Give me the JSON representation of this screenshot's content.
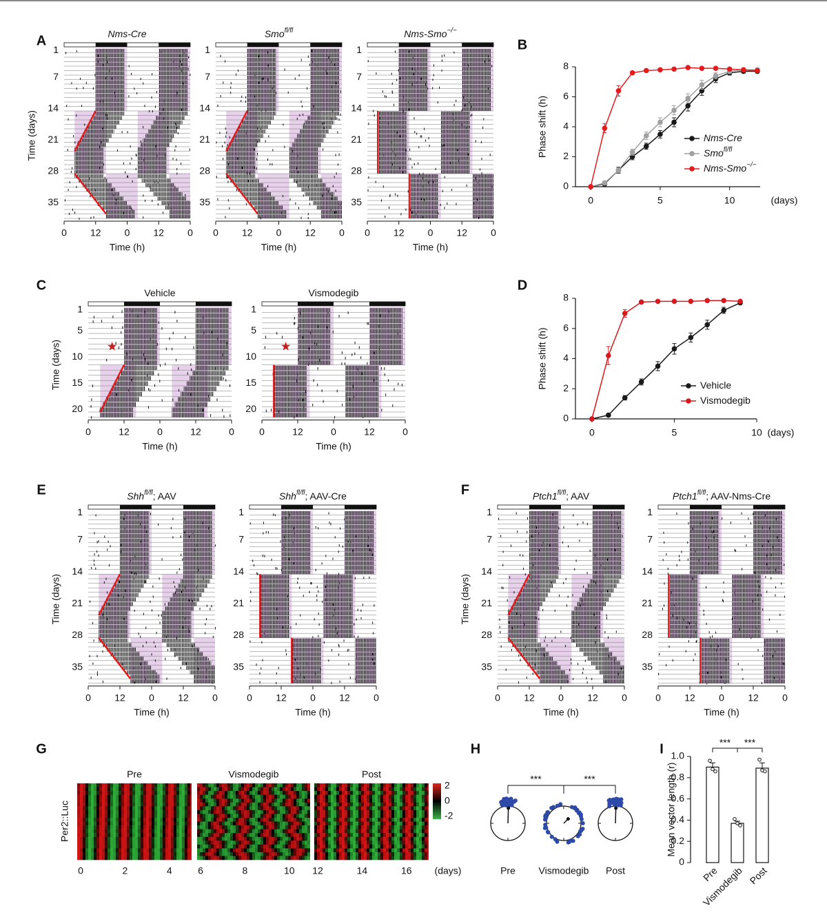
{
  "figure": {
    "actograms": [
      {
        "letter": "A",
        "y_label": "Time (days)",
        "x_label": "Time (h)",
        "day_ticks": [
          1,
          7,
          14,
          21,
          28,
          35
        ],
        "hour_ticks": [
          "0",
          "12",
          "0",
          "12",
          "0"
        ],
        "plots": [
          {
            "title": "Nms-Cre",
            "italic": true
          },
          {
            "title": "Smo",
            "title_sup": "fl/fl",
            "italic": true
          },
          {
            "title": "Nms-Smo",
            "title_sup": "−/−",
            "italic": true,
            "title_color": "#e41a1c"
          }
        ]
      },
      {
        "letter": "C",
        "y_label": "Time (days)",
        "x_label": "Time (h)",
        "day_ticks": [
          1,
          5,
          10,
          15,
          20
        ],
        "hour_ticks": [
          "0",
          "12",
          "0",
          "12",
          "0"
        ],
        "plots": [
          {
            "title": "Vehicle"
          },
          {
            "title": "Vismodegib"
          }
        ]
      },
      {
        "letter": "E",
        "y_label": "Time (days)",
        "x_label": "Time (h)",
        "day_ticks": [
          1,
          7,
          14,
          21,
          28,
          35
        ],
        "hour_ticks": [
          "0",
          "12",
          "0",
          "12",
          "0"
        ],
        "plots": [
          {
            "title": "Shh",
            "title_sup": "fl/fl",
            "title_rest": "; AAV",
            "italic": true
          },
          {
            "title": "Shh",
            "title_sup": "fl/fl",
            "title_rest": "; AAV-Cre",
            "italic": true
          }
        ]
      },
      {
        "letter": "F",
        "y_label": "Time (days)",
        "x_label": "Time (h)",
        "day_ticks": [
          1,
          7,
          14,
          21,
          28,
          35
        ],
        "hour_ticks": [
          "0",
          "12",
          "0",
          "12",
          "0"
        ],
        "plots": [
          {
            "title": "Ptch1",
            "title_sup": "fl/fl",
            "title_rest": "; AAV",
            "italic": true
          },
          {
            "title": "Ptch1",
            "title_sup": "fl/fl",
            "title_rest": "; AAV-Nms-Cre",
            "italic": true
          }
        ]
      }
    ],
    "heatmap": {
      "letter": "G",
      "y_label": "Per2::Luc",
      "segments": [
        "Pre",
        "Vismodegib",
        "Post"
      ],
      "x_ticks": [
        0,
        2,
        4,
        6,
        8,
        10,
        12,
        14,
        16
      ],
      "x_unit": "(days)",
      "colorbar_ticks": [
        2,
        0,
        -2
      ]
    },
    "polar": {
      "letter": "H",
      "labels": [
        "Pre",
        "Vismodegib",
        "Post"
      ],
      "significance": [
        "***",
        "***"
      ]
    }
  },
  "chart_data": [
    {
      "type": "line",
      "letter": "B",
      "x_label": "(days)",
      "y_label": "Phase shift (h)",
      "xlim": [
        -1.1,
        12.2
      ],
      "xticks": [
        0,
        5,
        10
      ],
      "ylim": [
        0,
        8
      ],
      "yticks": [
        0,
        2,
        4,
        6,
        8
      ],
      "legend": "lower right",
      "legend_italic": true,
      "x": [
        0,
        1,
        2,
        3,
        4,
        5,
        6,
        7,
        8,
        9,
        10,
        11,
        12
      ],
      "series": [
        {
          "name": "Nms-Cre",
          "color": "#1a1a1a",
          "values": [
            0,
            0.2,
            1.1,
            2.0,
            2.7,
            3.5,
            4.3,
            5.4,
            6.4,
            7.2,
            7.6,
            7.7,
            7.7
          ],
          "errors": [
            0,
            0.15,
            0.2,
            0.2,
            0.2,
            0.25,
            0.3,
            0.35,
            0.3,
            0.25,
            0.15,
            0.1,
            0.1
          ]
        },
        {
          "name": "Smo",
          "name_sup": "fl/fl",
          "color": "#a0a0a0",
          "values": [
            0,
            0.25,
            1.1,
            2.3,
            3.4,
            4.3,
            5.1,
            5.9,
            6.8,
            7.4,
            7.7,
            7.8,
            7.8
          ],
          "errors": [
            0,
            0.1,
            0.15,
            0.2,
            0.25,
            0.3,
            0.3,
            0.3,
            0.3,
            0.2,
            0.15,
            0.1,
            0.1
          ]
        },
        {
          "name": "Nms-Smo",
          "name_sup": "−/−",
          "color": "#e41a1c",
          "text_color": "#e41a1c",
          "values": [
            0,
            3.9,
            6.4,
            7.6,
            7.75,
            7.8,
            7.85,
            7.95,
            7.9,
            7.9,
            7.85,
            7.8,
            7.75
          ],
          "errors": [
            0,
            0.3,
            0.35,
            0.1,
            0.05,
            0.05,
            0.05,
            0.08,
            0.05,
            0.05,
            0.05,
            0.05,
            0.05
          ]
        }
      ]
    },
    {
      "type": "line",
      "letter": "D",
      "x_label": "(days)",
      "y_label": "Phase shift (h)",
      "xlim": [
        -1,
        10
      ],
      "xticks": [
        0,
        5,
        10
      ],
      "ylim": [
        0,
        8
      ],
      "yticks": [
        0,
        2,
        4,
        6,
        8
      ],
      "legend": "lower right",
      "x": [
        0,
        1,
        2,
        3,
        4,
        5,
        6,
        7,
        8,
        9
      ],
      "series": [
        {
          "name": "Vehicle",
          "color": "#1a1a1a",
          "values": [
            0,
            0.25,
            1.4,
            2.45,
            3.5,
            4.65,
            5.4,
            6.25,
            7.2,
            7.7
          ],
          "errors": [
            0,
            0.1,
            0.15,
            0.2,
            0.3,
            0.35,
            0.3,
            0.3,
            0.2,
            0.1
          ]
        },
        {
          "name": "Vismodegib",
          "color": "#d7191c",
          "values": [
            0,
            4.2,
            7.0,
            7.75,
            7.8,
            7.8,
            7.8,
            7.85,
            7.85,
            7.8
          ],
          "errors": [
            0,
            0.6,
            0.25,
            0.1,
            0.05,
            0.05,
            0.05,
            0.05,
            0.05,
            0.05
          ]
        }
      ]
    },
    {
      "type": "bar",
      "letter": "I",
      "y_label": "Mean vector length (r)",
      "categories": [
        "Pre",
        "Vismodegib",
        "Post"
      ],
      "values": [
        0.9,
        0.37,
        0.89
      ],
      "errors": [
        0.04,
        0.02,
        0.05
      ],
      "points": [
        [
          0.96,
          0.88,
          0.86
        ],
        [
          0.41,
          0.37,
          0.35
        ],
        [
          0.97,
          0.87,
          0.86
        ]
      ],
      "color": "#ffffff",
      "ylim": [
        0,
        1
      ],
      "yticks": [
        0,
        0.2,
        0.4,
        0.6,
        0.8,
        {
          "value": 1,
          "label": "1.0"
        }
      ],
      "significance": [
        "***",
        "***"
      ]
    }
  ]
}
